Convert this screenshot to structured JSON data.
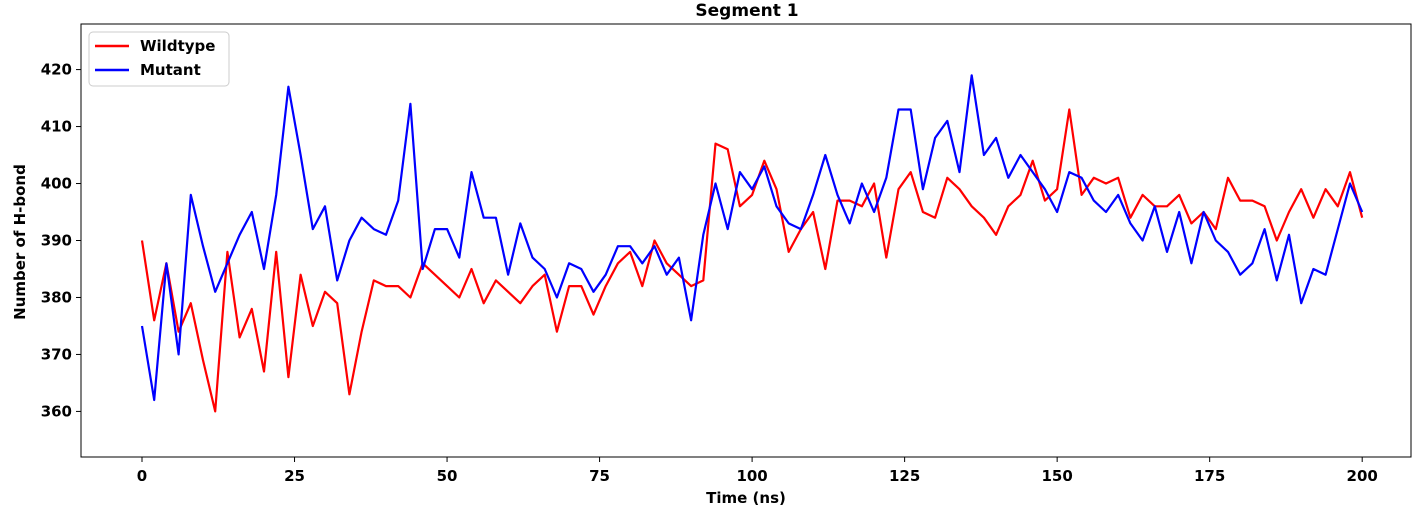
{
  "chart_data": {
    "type": "line",
    "title": "Segment 1",
    "xlabel": "Time (ns)",
    "ylabel": "Number of H-bond",
    "xlim": [
      -10,
      208
    ],
    "ylim": [
      352,
      428
    ],
    "x_ticks": [
      0,
      25,
      50,
      75,
      100,
      125,
      150,
      175,
      200
    ],
    "y_ticks": [
      360,
      370,
      380,
      390,
      400,
      410,
      420
    ],
    "grid": false,
    "legend": "top-left",
    "sample_step_ns": 2,
    "series": [
      {
        "name": "Wildtype",
        "color": "#ff0000",
        "x": [
          0,
          2,
          4,
          6,
          8,
          10,
          12,
          14,
          16,
          18,
          20,
          22,
          24,
          26,
          28,
          30,
          32,
          34,
          36,
          38,
          40,
          42,
          44,
          46,
          48,
          50,
          52,
          54,
          56,
          58,
          60,
          62,
          64,
          66,
          68,
          70,
          72,
          74,
          76,
          78,
          80,
          82,
          84,
          86,
          88,
          90,
          92,
          94,
          96,
          98,
          100,
          102,
          104,
          106,
          108,
          110,
          112,
          114,
          116,
          118,
          120,
          122,
          124,
          126,
          128,
          130,
          132,
          134,
          136,
          138,
          140,
          142,
          144,
          146,
          148,
          150,
          152,
          154,
          156,
          158,
          160,
          162,
          164,
          166,
          168,
          170,
          172,
          174,
          176,
          178,
          180,
          182,
          184,
          186,
          188,
          190,
          192,
          194,
          196,
          198,
          200
        ],
        "y": [
          390,
          376,
          386,
          374,
          379,
          369,
          360,
          388,
          373,
          378,
          367,
          388,
          366,
          384,
          375,
          381,
          379,
          363,
          374,
          383,
          382,
          382,
          380,
          386,
          384,
          382,
          380,
          385,
          379,
          383,
          381,
          379,
          382,
          384,
          374,
          382,
          382,
          377,
          382,
          386,
          388,
          382,
          390,
          386,
          384,
          382,
          383,
          407,
          406,
          396,
          398,
          404,
          399,
          388,
          392,
          395,
          385,
          397,
          397,
          396,
          400,
          387,
          399,
          402,
          395,
          394,
          401,
          399,
          396,
          394,
          391,
          396,
          398,
          404,
          397,
          399,
          413,
          398,
          401,
          400,
          401,
          394,
          398,
          396,
          396,
          398,
          393,
          395,
          392,
          401,
          397,
          397,
          396,
          390,
          395,
          399,
          394,
          399,
          396,
          402,
          394
        ]
      },
      {
        "name": "Mutant",
        "color": "#0000ff",
        "x": [
          0,
          2,
          4,
          6,
          8,
          10,
          12,
          14,
          16,
          18,
          20,
          22,
          24,
          26,
          28,
          30,
          32,
          34,
          36,
          38,
          40,
          42,
          44,
          46,
          48,
          50,
          52,
          54,
          56,
          58,
          60,
          62,
          64,
          66,
          68,
          70,
          72,
          74,
          76,
          78,
          80,
          82,
          84,
          86,
          88,
          90,
          92,
          94,
          96,
          98,
          100,
          102,
          104,
          106,
          108,
          110,
          112,
          114,
          116,
          118,
          120,
          122,
          124,
          126,
          128,
          130,
          132,
          134,
          136,
          138,
          140,
          142,
          144,
          146,
          148,
          150,
          152,
          154,
          156,
          158,
          160,
          162,
          164,
          166,
          168,
          170,
          172,
          174,
          176,
          178,
          180,
          182,
          184,
          186,
          188,
          190,
          192,
          194,
          196,
          198,
          200
        ],
        "y": [
          375,
          362,
          386,
          370,
          398,
          389,
          381,
          386,
          391,
          395,
          385,
          398,
          417,
          405,
          392,
          396,
          383,
          390,
          394,
          392,
          391,
          397,
          414,
          385,
          392,
          392,
          387,
          402,
          394,
          394,
          384,
          393,
          387,
          385,
          380,
          386,
          385,
          381,
          384,
          389,
          389,
          386,
          389,
          384,
          387,
          376,
          391,
          400,
          392,
          402,
          399,
          403,
          396,
          393,
          392,
          398,
          405,
          398,
          393,
          400,
          395,
          401,
          413,
          413,
          399,
          408,
          411,
          402,
          419,
          405,
          408,
          401,
          405,
          402,
          399,
          395,
          402,
          401,
          397,
          395,
          398,
          393,
          390,
          396,
          388,
          395,
          386,
          395,
          390,
          388,
          384,
          386,
          392,
          383,
          391,
          379,
          385,
          384,
          392,
          400,
          395
        ]
      }
    ]
  }
}
